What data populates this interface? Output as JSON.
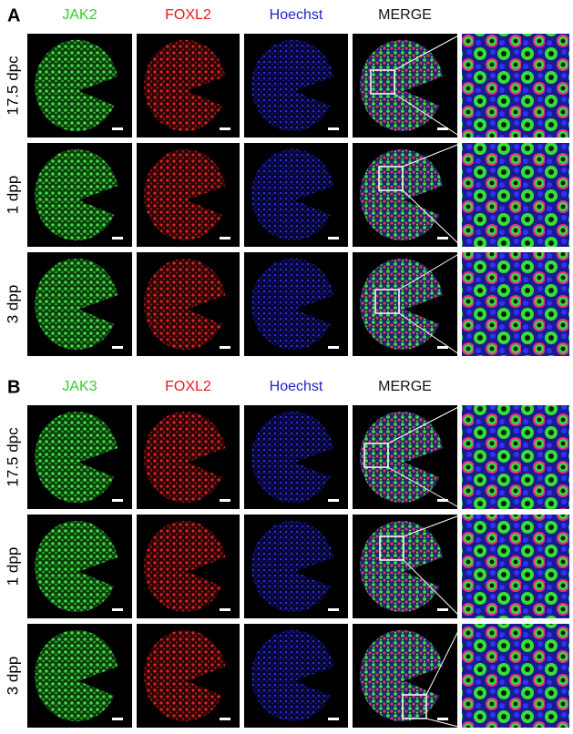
{
  "panels": [
    {
      "label": "A",
      "columns": [
        "JAK2",
        "FOXL2",
        "Hoechst",
        "MERGE"
      ],
      "rows": [
        "17.5 dpc",
        "1 dpp",
        "3 dpp"
      ]
    },
    {
      "label": "B",
      "columns": [
        "JAK3",
        "FOXL2",
        "Hoechst",
        "MERGE"
      ],
      "rows": [
        "17.5 dpc",
        "1 dpp",
        "3 dpp"
      ]
    }
  ]
}
